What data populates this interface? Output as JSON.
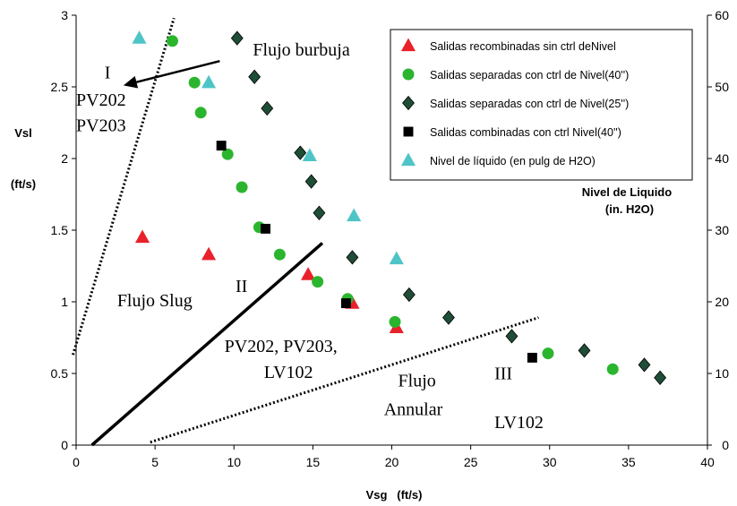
{
  "chart_data": {
    "type": "scatter",
    "xlabel": "Vsg   (ft/s)",
    "ylabel_top": "Vsl",
    "ylabel_unit": "(ft/s)",
    "y2label_line1": "Nivel de Liquido",
    "y2label_line2": "(in. H2O)",
    "xlim": [
      0,
      40
    ],
    "ylim": [
      0,
      3
    ],
    "y2lim": [
      0,
      60
    ],
    "x_ticks": [
      0,
      5,
      10,
      15,
      20,
      25,
      30,
      35,
      40
    ],
    "y_ticks": [
      0,
      0.5,
      1,
      1.5,
      2,
      2.5,
      3
    ],
    "y2_ticks": [
      0,
      10,
      20,
      30,
      40,
      50,
      60
    ],
    "grid": false,
    "legend_position": "top-right",
    "series": [
      {
        "name": "Salidas recombinadas sin ctrl deNivel",
        "marker": "triangle",
        "color": "#e8212b",
        "axis": "left",
        "x": [
          4.2,
          8.4,
          14.7,
          17.5,
          20.3
        ],
        "y": [
          1.45,
          1.33,
          1.19,
          0.99,
          0.82
        ]
      },
      {
        "name": "Salidas separadas con ctrl de Nivel(40'')",
        "marker": "circle",
        "color": "#2bb52e",
        "axis": "left",
        "x": [
          6.1,
          7.5,
          7.9,
          9.6,
          10.5,
          11.6,
          12.9,
          15.3,
          17.2,
          20.2,
          29.9,
          34.0
        ],
        "y": [
          2.82,
          2.53,
          2.32,
          2.03,
          1.8,
          1.52,
          1.33,
          1.14,
          1.02,
          0.86,
          0.64,
          0.53
        ]
      },
      {
        "name": "Salidas separadas con ctrl de Nivel(25'')",
        "marker": "diamond",
        "color": "#1f4d36",
        "axis": "left",
        "x": [
          10.2,
          11.3,
          12.1,
          14.2,
          14.9,
          15.4,
          17.5,
          21.1,
          23.6,
          27.6,
          32.2,
          36.0,
          37.0
        ],
        "y": [
          2.84,
          2.57,
          2.35,
          2.04,
          1.84,
          1.62,
          1.31,
          1.05,
          0.89,
          0.76,
          0.66,
          0.56,
          0.47
        ]
      },
      {
        "name": "Salidas combinadas con ctrl  Nivel(40'')",
        "marker": "square",
        "color": "#000000",
        "axis": "left",
        "x": [
          9.2,
          12.0,
          17.1,
          28.9
        ],
        "y": [
          2.09,
          1.51,
          0.99,
          0.61
        ]
      },
      {
        "name": "Nivel de líquido  (en pulg de H2O)",
        "marker": "triangle",
        "color": "#4fc4c6",
        "axis": "right",
        "x": [
          4.0,
          8.4,
          14.8,
          17.6,
          20.3
        ],
        "y": [
          56.8,
          50.6,
          40.4,
          32.0,
          26.0
        ]
      }
    ],
    "boundary_lines": [
      {
        "style": "dotted",
        "x": [
          -0.2,
          6.2
        ],
        "y": [
          0.63,
          2.98
        ]
      },
      {
        "style": "solid",
        "x": [
          1.0,
          15.6
        ],
        "y": [
          0.0,
          1.41
        ]
      },
      {
        "style": "dotted",
        "x": [
          4.7,
          29.3
        ],
        "y": [
          0.02,
          0.89
        ]
      }
    ],
    "arrow": {
      "from_x": 9.1,
      "from_y": 2.68,
      "to_x": 3.0,
      "to_y": 2.51
    },
    "annotations": [
      {
        "text": "Flujo burbuja",
        "x": 11.2,
        "y": 2.72,
        "font": "serif",
        "size": 20
      },
      {
        "text": "I",
        "x": 1.8,
        "y": 2.56,
        "font": "serif",
        "size": 20
      },
      {
        "text": "PV202",
        "x": 0.0,
        "y": 2.37,
        "font": "serif",
        "size": 18
      },
      {
        "text": "PV203",
        "x": 0.0,
        "y": 2.19,
        "font": "serif",
        "size": 18
      },
      {
        "text": "Flujo Slug",
        "x": 2.6,
        "y": 0.97,
        "font": "serif",
        "size": 20
      },
      {
        "text": "II",
        "x": 10.1,
        "y": 1.07,
        "font": "serif",
        "size": 20
      },
      {
        "text": "PV202, PV203,",
        "x": 9.4,
        "y": 0.65,
        "font": "serif",
        "size": 20
      },
      {
        "text": "LV102",
        "x": 11.9,
        "y": 0.47,
        "font": "serif",
        "size": 20
      },
      {
        "text": "Flujo",
        "x": 20.4,
        "y": 0.41,
        "font": "serif",
        "size": 20
      },
      {
        "text": "Annular",
        "x": 19.5,
        "y": 0.21,
        "font": "serif",
        "size": 20
      },
      {
        "text": "III",
        "x": 26.5,
        "y": 0.46,
        "font": "serif",
        "size": 20
      },
      {
        "text": "LV102",
        "x": 26.5,
        "y": 0.12,
        "font": "serif",
        "size": 20
      }
    ]
  }
}
